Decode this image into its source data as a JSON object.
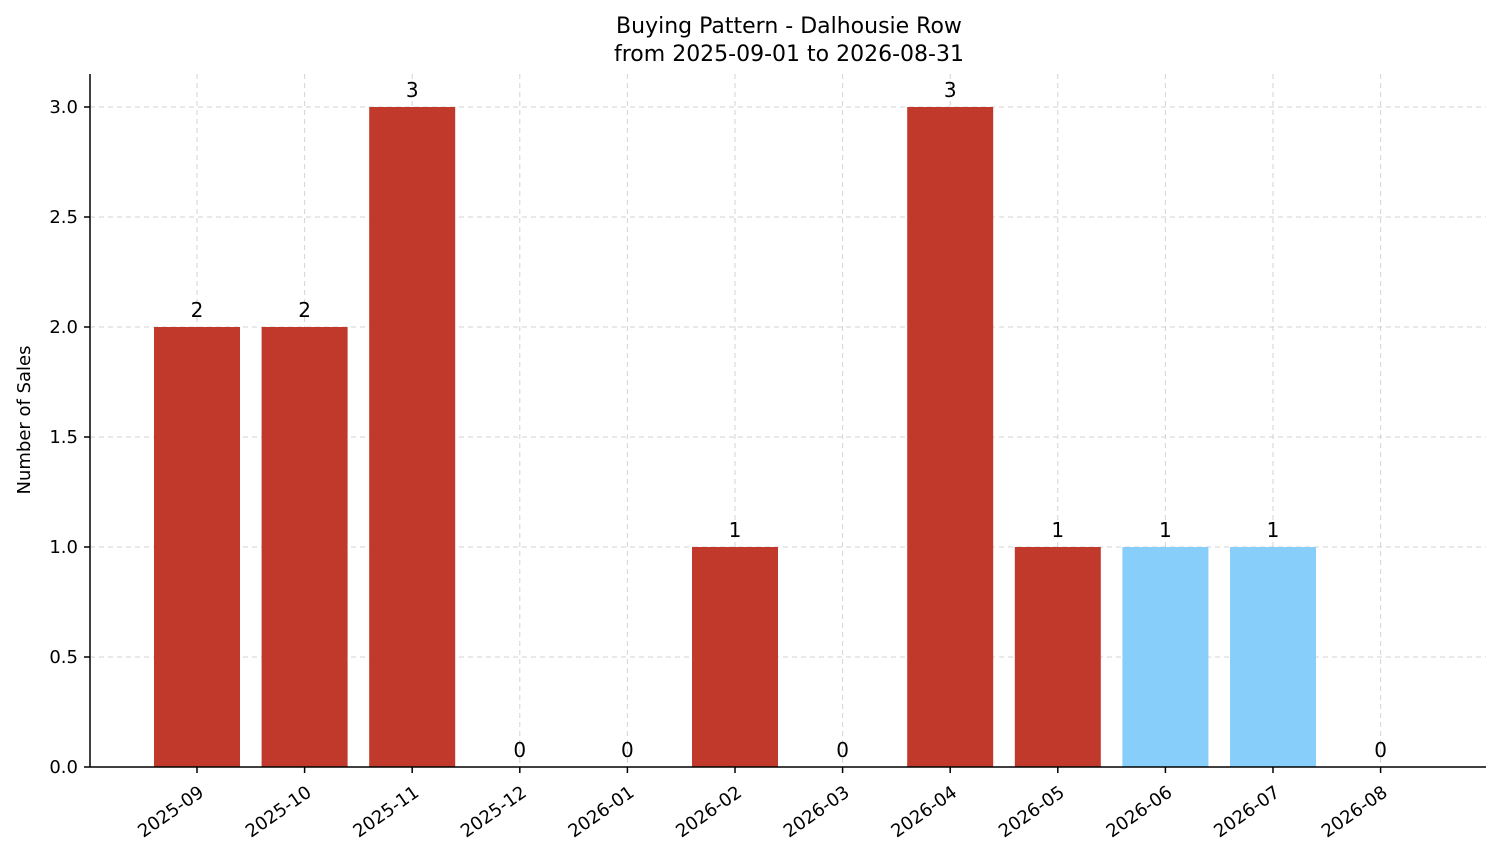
{
  "chart_data": {
    "type": "bar",
    "title": "Buying Pattern - Dalhousie Row",
    "subtitle": "from 2025-09-01 to 2026-08-31",
    "xlabel": "",
    "ylabel": "Number of Sales",
    "categories": [
      "2025-09",
      "2025-10",
      "2025-11",
      "2025-12",
      "2026-01",
      "2026-02",
      "2026-03",
      "2026-04",
      "2026-05",
      "2026-06",
      "2026-07",
      "2026-08"
    ],
    "values": [
      2,
      2,
      3,
      0,
      0,
      1,
      0,
      3,
      1,
      1,
      1,
      0
    ],
    "data_labels": [
      "2",
      "2",
      "3",
      "0",
      "0",
      "1",
      "0",
      "3",
      "1",
      "1",
      "1",
      "0"
    ],
    "bar_colors": [
      "#c0392b",
      "#c0392b",
      "#c0392b",
      "#c0392b",
      "#c0392b",
      "#c0392b",
      "#c0392b",
      "#c0392b",
      "#c0392b",
      "#87cefa",
      "#87cefa",
      "#c0392b"
    ],
    "ylim": [
      0,
      3.15
    ],
    "yticks": [
      0.0,
      0.5,
      1.0,
      1.5,
      2.0,
      2.5,
      3.0
    ],
    "ytick_labels": [
      "0.0",
      "0.5",
      "1.0",
      "1.5",
      "2.0",
      "2.5",
      "3.0"
    ],
    "grid": true,
    "legend": "none"
  }
}
